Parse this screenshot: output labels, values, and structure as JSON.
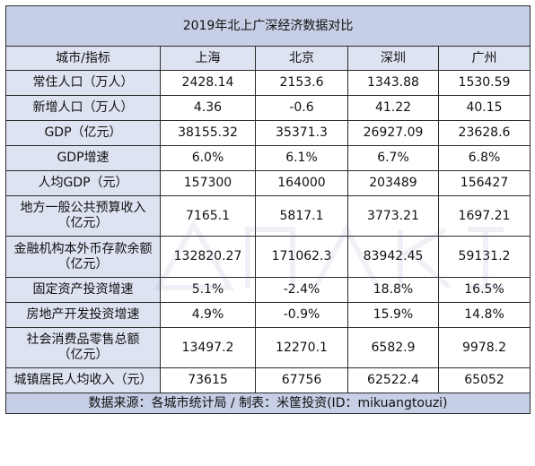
{
  "title": "2019年北上广深经济数据对比",
  "header": {
    "label": "城市/指标",
    "cities": [
      "上海",
      "北京",
      "深圳",
      "广州"
    ]
  },
  "rows": [
    {
      "metric": [
        "常住人口（万人）"
      ],
      "values": [
        "2428.14",
        "2153.6",
        "1343.88",
        "1530.59"
      ]
    },
    {
      "metric": [
        "新增人口（万人）"
      ],
      "values": [
        "4.36",
        "-0.6",
        "41.22",
        "40.15"
      ]
    },
    {
      "metric": [
        "GDP（亿元）"
      ],
      "values": [
        "38155.32",
        "35371.3",
        "26927.09",
        "23628.6"
      ]
    },
    {
      "metric": [
        "GDP增速"
      ],
      "values": [
        "6.0%",
        "6.1%",
        "6.7%",
        "6.8%"
      ]
    },
    {
      "metric": [
        "人均GDP（元）"
      ],
      "values": [
        "157300",
        "164000",
        "203489",
        "156427"
      ]
    },
    {
      "metric": [
        "地方一般公共预算收入",
        "（亿元）"
      ],
      "values": [
        "7165.1",
        "5817.1",
        "3773.21",
        "1697.21"
      ]
    },
    {
      "metric": [
        "金融机构本外币存款余额",
        "（亿元）"
      ],
      "values": [
        "132820.27",
        "171062.3",
        "83942.45",
        "59131.2"
      ]
    },
    {
      "metric": [
        "固定资产投资增速"
      ],
      "values": [
        "5.1%",
        "-2.4%",
        "18.8%",
        "16.5%"
      ]
    },
    {
      "metric": [
        "房地产开发投资增速"
      ],
      "values": [
        "4.9%",
        "-0.9%",
        "15.9%",
        "14.8%"
      ]
    },
    {
      "metric": [
        "社会消费品零售总额",
        "（亿元）"
      ],
      "values": [
        "13497.2",
        "12270.1",
        "6582.9",
        "9978.2"
      ]
    },
    {
      "metric": [
        "城镇居民人均收入（元）"
      ],
      "values": [
        "73615",
        "67756",
        "62522.4",
        "65052"
      ]
    }
  ],
  "footer": "数据来源：各城市统计局 / 制表：米筐投资(ID：mikuangtouzi)",
  "colors": {
    "title_bg": "#c6cfe5",
    "header_bg": "#dde3f1",
    "cell_bg": "#ffffff",
    "border": "#2a2a2a"
  },
  "watermark_icon": "mikuang-logo-watermark"
}
